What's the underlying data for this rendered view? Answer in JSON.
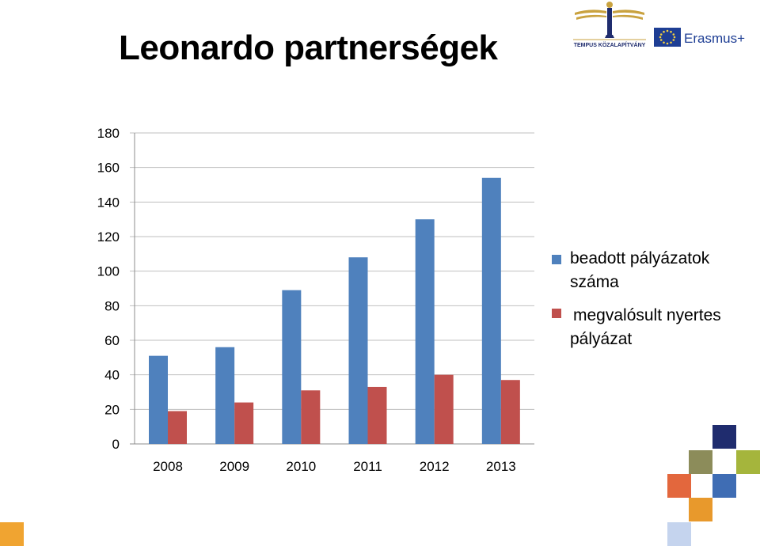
{
  "page": {
    "title": "Leonardo partnerségek"
  },
  "logos": {
    "tempus_text": "TEMPUS KÖZALAPÍTVÁNY",
    "erasmus_text": "Erasmus+"
  },
  "chart_data": {
    "type": "bar",
    "categories": [
      "2008",
      "2009",
      "2010",
      "2011",
      "2012",
      "2013"
    ],
    "series": [
      {
        "name": "beadott pályázatok száma",
        "values": [
          51,
          56,
          89,
          108,
          130,
          154
        ],
        "color": "#4F81BD"
      },
      {
        "name": "megvalósult nyertes pályázat",
        "values": [
          19,
          24,
          31,
          33,
          40,
          37
        ],
        "color": "#C0504D"
      }
    ],
    "ylim": [
      0,
      180
    ],
    "yticks": [
      0,
      20,
      40,
      60,
      80,
      100,
      120,
      140,
      160,
      180
    ],
    "grid": true,
    "legend_position": "right"
  },
  "decor_colors": {
    "navy": "#1F2C6E",
    "olive": "#8C8C5A",
    "lime": "#A5B53C",
    "orange_red": "#E3673D",
    "blue": "#3F6DB4",
    "orange": "#E8992C",
    "pale_blue": "#C5D4EE",
    "corner_orange": "#F0A431"
  }
}
